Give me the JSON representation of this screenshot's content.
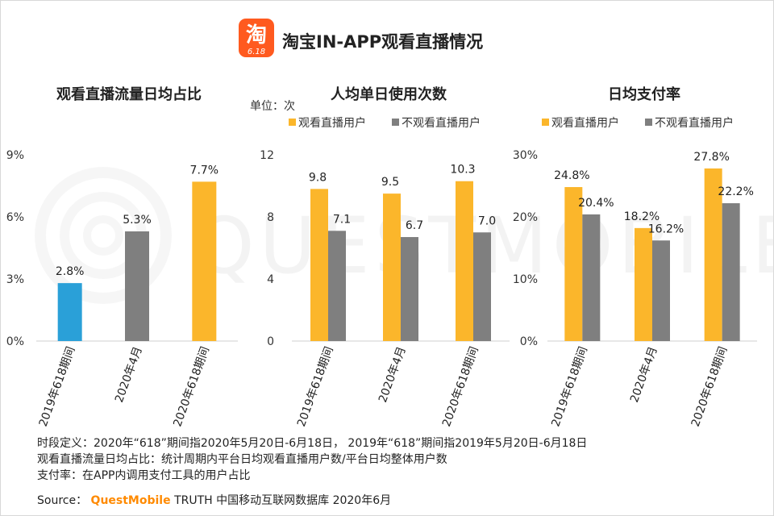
{
  "page_title": "淘宝IN-APP观看直播情况",
  "logo": {
    "glyph": "淘",
    "sub": "6.18",
    "color": "#ff5a1f"
  },
  "watermark": "QUESTMOBILE",
  "chart_data": [
    {
      "type": "bar",
      "title": "观看直播流量日均占比",
      "categories": [
        "2019年618期间",
        "2020年4月",
        "2020年618期间"
      ],
      "values": [
        2.8,
        5.3,
        7.7
      ],
      "value_labels": [
        "2.8%",
        "5.3%",
        "7.7%"
      ],
      "bar_colors": [
        "#2aa0d8",
        "#7f7f7f",
        "#fbb62b"
      ],
      "yticks": [
        "0%",
        "3%",
        "6%",
        "9%"
      ],
      "ylim": [
        0,
        9
      ]
    },
    {
      "type": "bar",
      "title": "人均单日使用次数",
      "unit_label": "单位：次",
      "categories": [
        "2019年618期间",
        "2020年4月",
        "2020年618期间"
      ],
      "series": [
        {
          "name": "观看直播用户",
          "color": "#fbb62b",
          "values": [
            9.8,
            9.5,
            10.3
          ],
          "labels": [
            "9.8",
            "9.5",
            "10.3"
          ]
        },
        {
          "name": "不观看直播用户",
          "color": "#7f7f7f",
          "values": [
            7.1,
            6.7,
            7.0
          ],
          "labels": [
            "7.1",
            "6.7",
            "7.0"
          ]
        }
      ],
      "yticks": [
        "0",
        "4",
        "8",
        "12"
      ],
      "ylim": [
        0,
        12
      ]
    },
    {
      "type": "bar",
      "title": "日均支付率",
      "categories": [
        "2019年618期间",
        "2020年4月",
        "2020年618期间"
      ],
      "series": [
        {
          "name": "观看直播用户",
          "color": "#fbb62b",
          "values": [
            24.8,
            18.2,
            27.8
          ],
          "labels": [
            "24.8%",
            "18.2%",
            "27.8%"
          ]
        },
        {
          "name": "不观看直播用户",
          "color": "#7f7f7f",
          "values": [
            20.4,
            16.2,
            22.2
          ],
          "labels": [
            "20.4%",
            "16.2%",
            "22.2%"
          ]
        }
      ],
      "yticks": [
        "0%",
        "10%",
        "20%",
        "30%"
      ],
      "ylim": [
        0,
        30
      ]
    }
  ],
  "notes": [
    "时段定义：2020年“618”期间指2020年5月20日-6月18日， 2019年“618”期间指2019年5月20日-6月18日",
    "观看直播流量日均占比：统计周期内平台日均观看直播用户数/平台日均整体用户数",
    "支付率：在APP内调用支付工具的用户占比"
  ],
  "source": {
    "label": "Source：",
    "brand": "QuestMobile",
    "rest": "TRUTH 中国移动互联网数据库 2020年6月"
  }
}
